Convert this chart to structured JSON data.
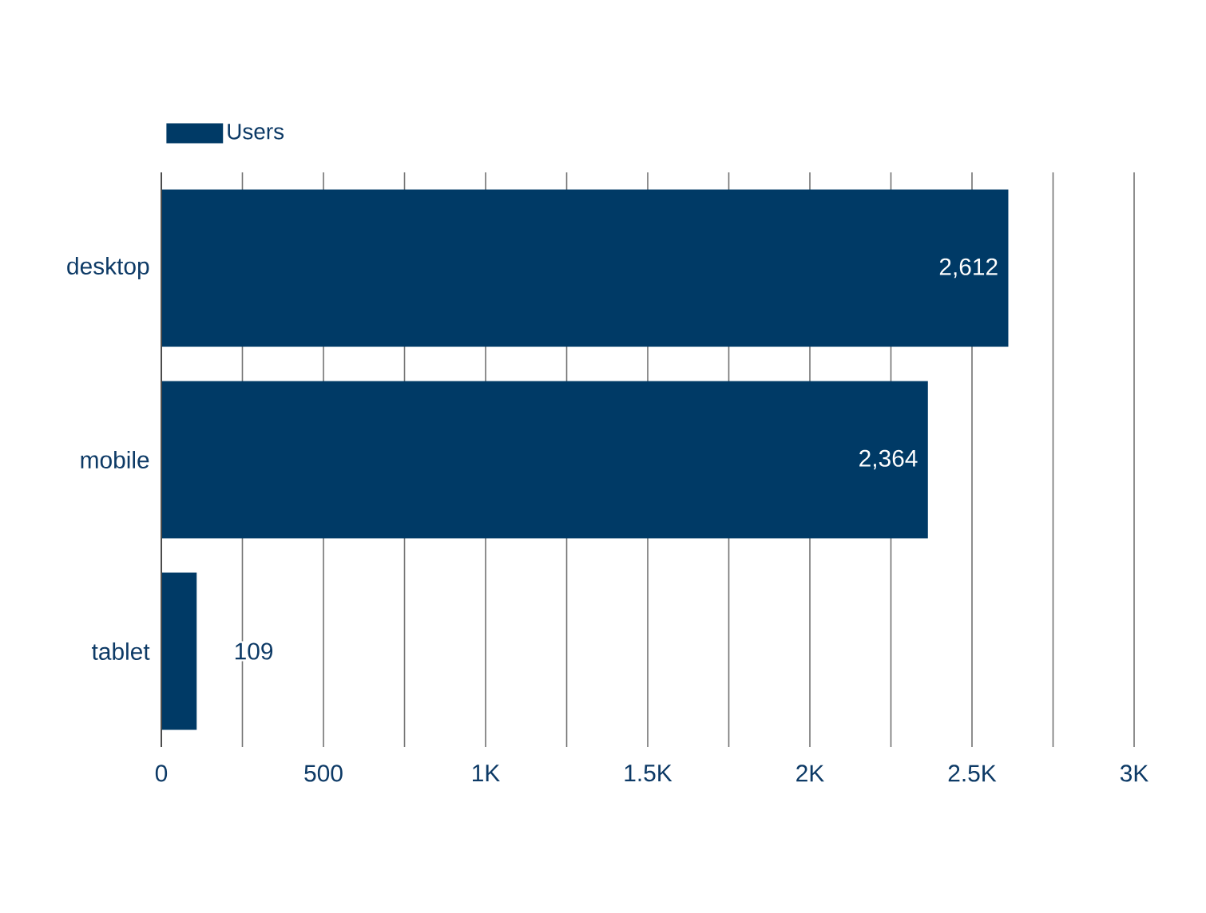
{
  "chart_data": {
    "type": "bar",
    "orientation": "horizontal",
    "categories": [
      "desktop",
      "mobile",
      "tablet"
    ],
    "series": [
      {
        "name": "Users",
        "color": "#003a66",
        "values": [
          2612,
          2364,
          109
        ]
      }
    ],
    "value_labels": [
      "2,612",
      "2,364",
      "109"
    ],
    "xlim": [
      0,
      3000
    ],
    "xticks": [
      0,
      {
        "value": 250,
        "label": null
      },
      500,
      {
        "value": 750,
        "label": null
      },
      {
        "value": 1000,
        "label": "1K"
      },
      {
        "value": 1250,
        "label": null
      },
      {
        "value": 1500,
        "label": "1.5K"
      },
      {
        "value": 1750,
        "label": null
      },
      {
        "value": 2000,
        "label": "2K"
      },
      {
        "value": 2250,
        "label": null
      },
      {
        "value": 2500,
        "label": "2.5K"
      },
      {
        "value": 2750,
        "label": null
      },
      {
        "value": 3000,
        "label": "3K"
      }
    ],
    "grid": "x",
    "legend": "top left"
  }
}
